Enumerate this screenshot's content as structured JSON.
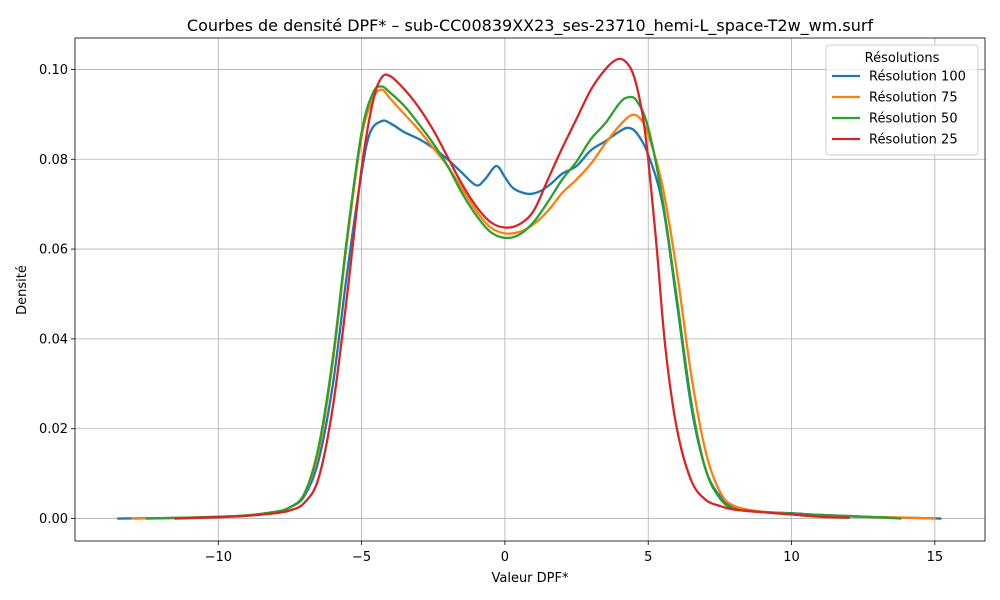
{
  "chart_data": {
    "type": "line",
    "title": "Courbes de densité DPF* – sub-CC00839XX23_ses-23710_hemi-L_space-T2w_wm.surf",
    "xlabel": "Valeur DPF*",
    "ylabel": "Densité",
    "xlim": [
      -15.0,
      16.75
    ],
    "ylim": [
      -0.005,
      0.107
    ],
    "xticks": [
      -10,
      -5,
      0,
      5,
      10,
      15
    ],
    "xtick_labels": [
      "−10",
      "−5",
      "0",
      "5",
      "10",
      "15"
    ],
    "yticks": [
      0.0,
      0.02,
      0.04,
      0.06,
      0.08,
      0.1
    ],
    "ytick_labels": [
      "0.00",
      "0.02",
      "0.04",
      "0.06",
      "0.08",
      "0.10"
    ],
    "grid": true,
    "legend": {
      "title": "Résolutions",
      "position": "top-right"
    },
    "series": [
      {
        "name": "Résolution 100",
        "color": "#1f77b4",
        "points": [
          [
            -13.5,
            0.0
          ],
          [
            -11,
            0.0002
          ],
          [
            -10,
            0.0004
          ],
          [
            -9,
            0.0007
          ],
          [
            -8,
            0.0015
          ],
          [
            -7.5,
            0.0025
          ],
          [
            -7,
            0.005
          ],
          [
            -6.5,
            0.013
          ],
          [
            -6,
            0.03
          ],
          [
            -5.5,
            0.055
          ],
          [
            -5,
            0.077
          ],
          [
            -4.7,
            0.086
          ],
          [
            -4.3,
            0.0885
          ],
          [
            -4,
            0.088
          ],
          [
            -3.5,
            0.086
          ],
          [
            -3,
            0.0845
          ],
          [
            -2.5,
            0.0825
          ],
          [
            -2,
            0.08
          ],
          [
            -1.5,
            0.077
          ],
          [
            -1,
            0.0742
          ],
          [
            -0.7,
            0.0755
          ],
          [
            -0.3,
            0.0785
          ],
          [
            0,
            0.076
          ],
          [
            0.3,
            0.0735
          ],
          [
            0.8,
            0.0723
          ],
          [
            1.2,
            0.0728
          ],
          [
            1.6,
            0.0745
          ],
          [
            2,
            0.0768
          ],
          [
            2.5,
            0.0785
          ],
          [
            3,
            0.082
          ],
          [
            3.5,
            0.084
          ],
          [
            4,
            0.0862
          ],
          [
            4.3,
            0.087
          ],
          [
            4.6,
            0.0858
          ],
          [
            5,
            0.081
          ],
          [
            5.5,
            0.07
          ],
          [
            6,
            0.048
          ],
          [
            6.5,
            0.025
          ],
          [
            7,
            0.011
          ],
          [
            7.5,
            0.005
          ],
          [
            8,
            0.0025
          ],
          [
            9,
            0.0015
          ],
          [
            10,
            0.0012
          ],
          [
            11,
            0.0008
          ],
          [
            12,
            0.0006
          ],
          [
            13,
            0.0003
          ],
          [
            14,
            0.0002
          ],
          [
            15.2,
            0.0
          ]
        ]
      },
      {
        "name": "Résolution 75",
        "color": "#ff7f0e",
        "points": [
          [
            -13,
            0.0
          ],
          [
            -11,
            0.0002
          ],
          [
            -10,
            0.0004
          ],
          [
            -9,
            0.0007
          ],
          [
            -8,
            0.0015
          ],
          [
            -7.5,
            0.0025
          ],
          [
            -7,
            0.0055
          ],
          [
            -6.5,
            0.015
          ],
          [
            -6,
            0.035
          ],
          [
            -5.5,
            0.062
          ],
          [
            -5,
            0.085
          ],
          [
            -4.6,
            0.0935
          ],
          [
            -4.3,
            0.0955
          ],
          [
            -4,
            0.0935
          ],
          [
            -3.5,
            0.09
          ],
          [
            -3,
            0.0865
          ],
          [
            -2.5,
            0.0825
          ],
          [
            -2,
            0.0785
          ],
          [
            -1.5,
            0.0735
          ],
          [
            -1,
            0.0685
          ],
          [
            -0.5,
            0.0648
          ],
          [
            0,
            0.0635
          ],
          [
            0.5,
            0.0638
          ],
          [
            1,
            0.0655
          ],
          [
            1.5,
            0.0685
          ],
          [
            2,
            0.0725
          ],
          [
            2.5,
            0.0755
          ],
          [
            3,
            0.079
          ],
          [
            3.5,
            0.0835
          ],
          [
            4,
            0.0875
          ],
          [
            4.4,
            0.0898
          ],
          [
            4.7,
            0.0892
          ],
          [
            5,
            0.0855
          ],
          [
            5.5,
            0.074
          ],
          [
            6,
            0.055
          ],
          [
            6.5,
            0.032
          ],
          [
            7,
            0.015
          ],
          [
            7.5,
            0.006
          ],
          [
            8,
            0.0028
          ],
          [
            9,
            0.0015
          ],
          [
            10,
            0.0011
          ],
          [
            11,
            0.0008
          ],
          [
            12,
            0.0005
          ],
          [
            13,
            0.0003
          ],
          [
            14,
            0.0002
          ],
          [
            15,
            0.0
          ]
        ]
      },
      {
        "name": "Résolution 50",
        "color": "#2ca02c",
        "points": [
          [
            -12.5,
            0.0
          ],
          [
            -11,
            0.0002
          ],
          [
            -10,
            0.0004
          ],
          [
            -9,
            0.0007
          ],
          [
            -8,
            0.0015
          ],
          [
            -7.5,
            0.0025
          ],
          [
            -7,
            0.0055
          ],
          [
            -6.5,
            0.016
          ],
          [
            -6,
            0.036
          ],
          [
            -5.5,
            0.063
          ],
          [
            -5,
            0.086
          ],
          [
            -4.6,
            0.0948
          ],
          [
            -4.3,
            0.0962
          ],
          [
            -4,
            0.0948
          ],
          [
            -3.5,
            0.0918
          ],
          [
            -3,
            0.0878
          ],
          [
            -2.5,
            0.0835
          ],
          [
            -2,
            0.0785
          ],
          [
            -1.5,
            0.0725
          ],
          [
            -1,
            0.0675
          ],
          [
            -0.5,
            0.0638
          ],
          [
            0,
            0.0625
          ],
          [
            0.5,
            0.0632
          ],
          [
            1,
            0.066
          ],
          [
            1.5,
            0.0705
          ],
          [
            2,
            0.0755
          ],
          [
            2.5,
            0.0795
          ],
          [
            3,
            0.0845
          ],
          [
            3.5,
            0.088
          ],
          [
            4,
            0.0925
          ],
          [
            4.3,
            0.0938
          ],
          [
            4.6,
            0.093
          ],
          [
            5,
            0.087
          ],
          [
            5.5,
            0.071
          ],
          [
            6,
            0.049
          ],
          [
            6.5,
            0.026
          ],
          [
            7,
            0.011
          ],
          [
            7.5,
            0.0045
          ],
          [
            8,
            0.0022
          ],
          [
            9,
            0.0014
          ],
          [
            10,
            0.0011
          ],
          [
            11,
            0.0008
          ],
          [
            12,
            0.0005
          ],
          [
            13,
            0.0003
          ],
          [
            13.8,
            0.0
          ]
        ]
      },
      {
        "name": "Résolution 25",
        "color": "#d62728",
        "points": [
          [
            -11.5,
            0.0
          ],
          [
            -10,
            0.0003
          ],
          [
            -9,
            0.0006
          ],
          [
            -8,
            0.0012
          ],
          [
            -7.5,
            0.0018
          ],
          [
            -7,
            0.0035
          ],
          [
            -6.5,
            0.009
          ],
          [
            -6,
            0.025
          ],
          [
            -5.5,
            0.05
          ],
          [
            -5,
            0.078
          ],
          [
            -4.6,
            0.093
          ],
          [
            -4.3,
            0.0982
          ],
          [
            -4,
            0.0985
          ],
          [
            -3.5,
            0.0955
          ],
          [
            -3,
            0.0915
          ],
          [
            -2.5,
            0.0865
          ],
          [
            -2,
            0.0805
          ],
          [
            -1.5,
            0.0745
          ],
          [
            -1,
            0.0695
          ],
          [
            -0.5,
            0.066
          ],
          [
            0,
            0.0648
          ],
          [
            0.5,
            0.0655
          ],
          [
            1,
            0.0685
          ],
          [
            1.5,
            0.0755
          ],
          [
            2,
            0.0825
          ],
          [
            2.5,
            0.089
          ],
          [
            3,
            0.0955
          ],
          [
            3.5,
            0.1
          ],
          [
            3.9,
            0.1022
          ],
          [
            4.2,
            0.1018
          ],
          [
            4.5,
            0.0985
          ],
          [
            4.8,
            0.09
          ],
          [
            5,
            0.08
          ],
          [
            5.3,
            0.06
          ],
          [
            5.6,
            0.038
          ],
          [
            6,
            0.02
          ],
          [
            6.5,
            0.0085
          ],
          [
            7,
            0.0042
          ],
          [
            7.5,
            0.0028
          ],
          [
            8,
            0.002
          ],
          [
            9,
            0.0014
          ],
          [
            10,
            0.0009
          ],
          [
            11,
            0.0004
          ],
          [
            12,
            0.0002
          ]
        ]
      }
    ]
  }
}
